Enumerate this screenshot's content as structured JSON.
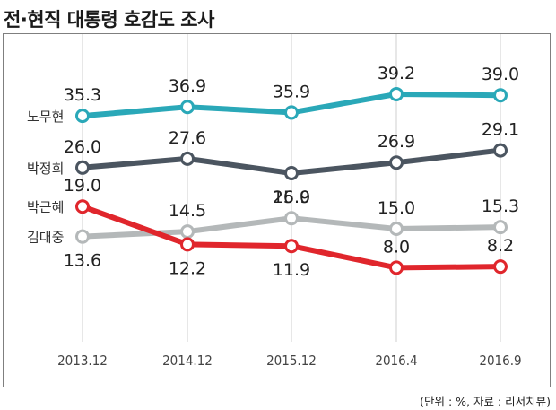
{
  "chart_data": {
    "type": "line",
    "title": "전·현직 대통령 호감도 조사",
    "note": "(단위 : %, 자료 : 리서치뷰)",
    "categories": [
      "2013.12",
      "2014.12",
      "2015.12",
      "2016.4",
      "2016.9"
    ],
    "ylim": [
      0,
      45
    ],
    "grid": "vertical",
    "series": [
      {
        "name": "노무현",
        "color": "#2aa8b8",
        "values": [
          35.3,
          36.9,
          35.9,
          39.2,
          39.0
        ],
        "labels": [
          "35.3",
          "36.9",
          "35.9",
          "39.2",
          "39.0"
        ],
        "label_pos": [
          "above",
          "above",
          "above",
          "above",
          "above"
        ]
      },
      {
        "name": "박정희",
        "color": "#4b5560",
        "values": [
          26.0,
          27.6,
          25.0,
          26.9,
          29.1
        ],
        "labels": [
          "26.0",
          "27.6",
          "25.0",
          "26.9",
          "29.1"
        ],
        "label_pos": [
          "above",
          "above",
          "below",
          "above",
          "above"
        ]
      },
      {
        "name": "박근혜",
        "color": "#e0262c",
        "values": [
          19.0,
          12.2,
          11.9,
          8.0,
          8.2
        ],
        "labels": [
          "19.0",
          "12.2",
          "11.9",
          "8.0",
          "8.2"
        ],
        "label_pos": [
          "above",
          "below",
          "below",
          "above",
          "above"
        ]
      },
      {
        "name": "김대중",
        "color": "#b4b8b9",
        "values": [
          13.6,
          14.5,
          16.9,
          15.0,
          15.3
        ],
        "labels": [
          "13.6",
          "14.5",
          "16.9",
          "15.0",
          "15.3"
        ],
        "label_pos": [
          "below",
          "above",
          "above",
          "above",
          "above"
        ]
      }
    ]
  }
}
